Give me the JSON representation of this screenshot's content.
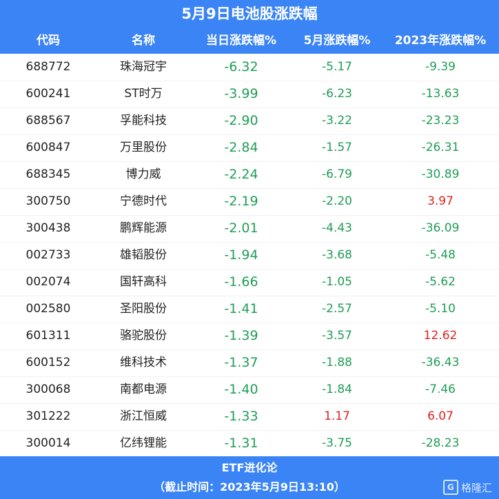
{
  "title": "5月9日电池股涨跌幅",
  "columns": [
    "代码",
    "名称",
    "当日涨跌幅%",
    "5月涨跌幅%",
    "2023年涨跌幅%"
  ],
  "rows": [
    {
      "code": "688772",
      "name": "珠海冠宇",
      "today": "-6.32",
      "may": "-5.17",
      "ytd": "-9.39"
    },
    {
      "code": "600241",
      "name": "ST时万",
      "today": "-3.99",
      "may": "-6.23",
      "ytd": "-13.63"
    },
    {
      "code": "688567",
      "name": "孚能科技",
      "today": "-2.90",
      "may": "-3.22",
      "ytd": "-23.23"
    },
    {
      "code": "600847",
      "name": "万里股份",
      "today": "-2.84",
      "may": "-1.57",
      "ytd": "-26.31"
    },
    {
      "code": "688345",
      "name": "博力威",
      "today": "-2.24",
      "may": "-6.79",
      "ytd": "-30.89"
    },
    {
      "code": "300750",
      "name": "宁德时代",
      "today": "-2.19",
      "may": "-2.20",
      "ytd": "3.97"
    },
    {
      "code": "300438",
      "name": "鹏辉能源",
      "today": "-2.01",
      "may": "-4.43",
      "ytd": "-36.09"
    },
    {
      "code": "002733",
      "name": "雄韬股份",
      "today": "-1.94",
      "may": "-3.68",
      "ytd": "-5.48"
    },
    {
      "code": "002074",
      "name": "国轩高科",
      "today": "-1.66",
      "may": "-1.05",
      "ytd": "-5.62"
    },
    {
      "code": "002580",
      "name": "圣阳股份",
      "today": "-1.41",
      "may": "-2.57",
      "ytd": "-5.10"
    },
    {
      "code": "601311",
      "name": "骆驼股份",
      "today": "-1.39",
      "may": "-3.57",
      "ytd": "12.62"
    },
    {
      "code": "600152",
      "name": "维科技术",
      "today": "-1.37",
      "may": "-1.88",
      "ytd": "-36.43"
    },
    {
      "code": "300068",
      "name": "南都电源",
      "today": "-1.40",
      "may": "-1.84",
      "ytd": "-7.46"
    },
    {
      "code": "301222",
      "name": "浙江恒威",
      "today": "-1.33",
      "may": "1.17",
      "ytd": "6.07"
    },
    {
      "code": "300014",
      "name": "亿纬锂能",
      "today": "-1.31",
      "may": "-3.75",
      "ytd": "-28.23"
    }
  ],
  "footer": {
    "source": "ETF进化论",
    "time": "（截止时间：2023年5月9日13:10）"
  },
  "logo": {
    "mark": "G",
    "text": "格隆汇"
  },
  "colors": {
    "header_bg": "#3a84f5",
    "negative": "#1f9d55",
    "positive": "#e02020"
  }
}
